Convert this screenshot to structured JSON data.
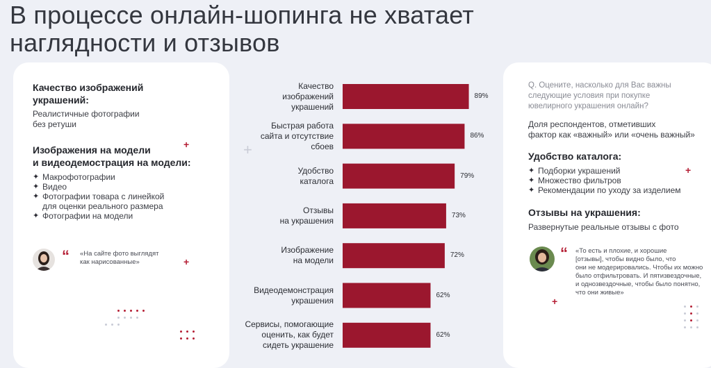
{
  "title": "В процессе онлайн-шопинга не хватает наглядности и отзывов",
  "title_line1": "В процессе онлайн-шопинга не хватает",
  "title_line2": "наглядности и отзывов",
  "left_card": {
    "section1_heading_l1": "Качество изображений",
    "section1_heading_l2": "украшений:",
    "section1_text_l1": "Реалистичные фотографии",
    "section1_text_l2": "без ретуши",
    "section2_heading_l1": "Изображения на модели",
    "section2_heading_l2": "и видеодемострация на модели:",
    "bullets": [
      "Макрофотографии",
      "Видео",
      "Фотографии товара с линейкой",
      "для оценки реального размера",
      "Фотографии на модели"
    ],
    "quote_l1": "«На сайте фото выглядят",
    "quote_l2": "как нарисованные»"
  },
  "right_card": {
    "question_l1": "Q. Оцените, насколько для Вас важны",
    "question_l2": "следующие условия при покупке",
    "question_l3": "ювелирного украшения онлайн?",
    "note_l1": "Доля респондентов, отметивших",
    "note_l2": "фактор как «важный» или «очень важный»",
    "section1_heading": "Удобство каталога:",
    "bullets": [
      "Подборки украшений",
      "Множество фильтров",
      "Рекомендации по уходу за изделием"
    ],
    "section2_heading": "Отзывы на украшения:",
    "section2_text": "Развернутые реальные отзывы с фото",
    "quote_lines": [
      "«То есть и плохие, и хорошие",
      "[отзывы], чтобы видно было, что",
      "они не модерировались. Чтобы их можно",
      "было отфильтровать. И пятизвездочные,",
      "и однозвездочные, чтобы было понятно,",
      "что они живые»"
    ]
  },
  "colors": {
    "bar": "#9b172e",
    "accent": "#b51f35",
    "background": "#eef0f6",
    "card": "#ffffff"
  },
  "icons": {
    "bullet": "four-point-star-icon",
    "quote": "quote-mark-icon"
  },
  "chart_data": {
    "type": "bar",
    "orientation": "horizontal",
    "categories": [
      "Качество изображений украшений",
      "Быстрая работа сайта и отсутствие сбоев",
      "Удобство каталога",
      "Отзывы на украшения",
      "Изображение на модели",
      "Видеодемонстрация украшения",
      "Сервисы, помогающие оценить, как будет сидеть украшение"
    ],
    "category_lines": [
      [
        "Качество",
        "изображений",
        "украшений"
      ],
      [
        "Быстрая работа",
        "сайта и отсутствие",
        "сбоев"
      ],
      [
        "Удобство",
        "каталога"
      ],
      [
        "Отзывы",
        "на украшения"
      ],
      [
        "Изображение",
        "на модели"
      ],
      [
        "Видеодемонстрация",
        "украшения"
      ],
      [
        "Сервисы, помогающие",
        "оценить, как будет",
        "сидеть украшение"
      ]
    ],
    "values": [
      89,
      86,
      79,
      73,
      72,
      62,
      62
    ],
    "value_labels": [
      "89%",
      "86%",
      "79%",
      "73%",
      "72%",
      "62%",
      "62%"
    ],
    "unit": "%",
    "xlim": [
      0,
      100
    ],
    "grid": false,
    "legend": "none"
  }
}
